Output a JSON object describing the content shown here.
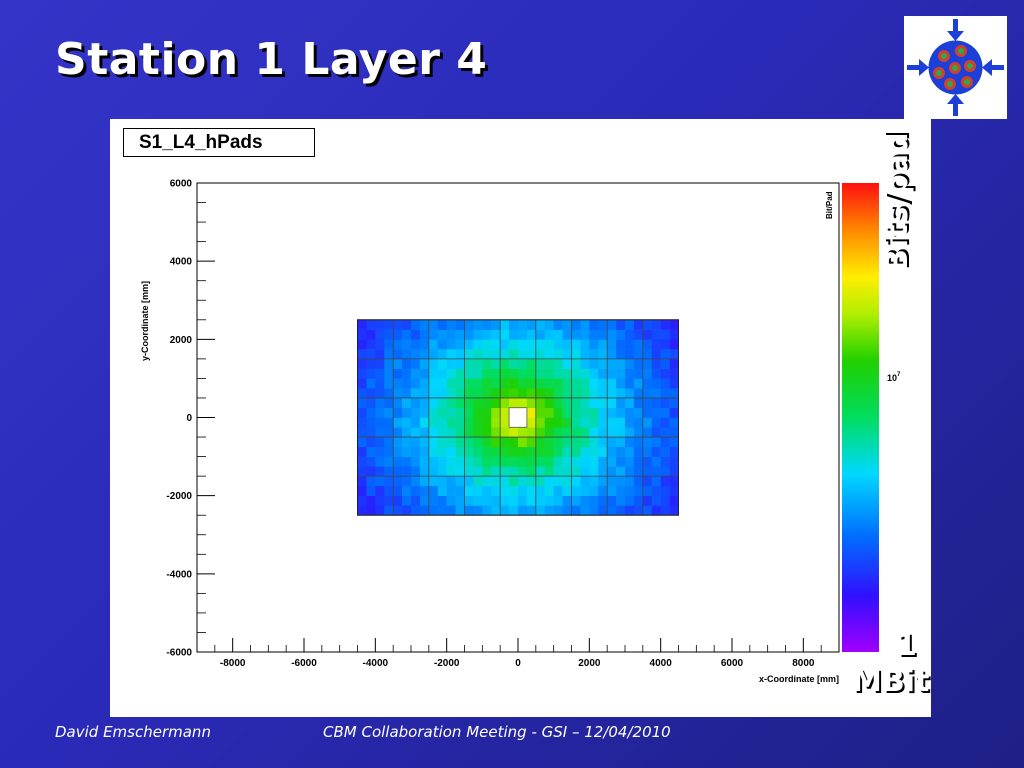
{
  "slide": {
    "title": "Station 1 Layer 4",
    "footer_author": "David Emschermann",
    "footer_event": "CBM Collaboration Meeting - GSI – 12/04/2010",
    "side_label_top": "Bits/pad",
    "side_label_bottom_number": "1",
    "side_label_bottom_unit": "MBit",
    "logo_icon": "cbm-detector-logo-icon"
  },
  "chart_data": {
    "type": "heatmap",
    "title": "S1_L4_hPads",
    "xlabel": "x-Coordinate [mm]",
    "ylabel": "y-Coordinate [mm]",
    "zlabel": "Bit/Pad",
    "xlim": [
      -9000,
      9000
    ],
    "ylim": [
      -6000,
      6000
    ],
    "x_ticks": [
      -8000,
      -6000,
      -4000,
      -2000,
      0,
      2000,
      4000,
      6000,
      8000
    ],
    "y_ticks": [
      6000,
      4000,
      2000,
      0,
      -2000,
      -4000,
      -6000
    ],
    "z_tick_label": "10",
    "z_tick_exponent": "7",
    "z_tick_value": 10000000,
    "z_scale": "log",
    "colormap": "rainbow",
    "colors": {
      "low": "#8a00ff",
      "mid": "#00cc00",
      "high": "#ff1010"
    },
    "detector_extent": {
      "x": [
        -4500,
        4500
      ],
      "y": [
        -2500,
        2500
      ]
    },
    "inner_hole": {
      "x": [
        -250,
        250
      ],
      "y": [
        -250,
        250
      ]
    },
    "grid": false,
    "legend": "colorbar-right",
    "profile": "rate falls off with distance from beam hole at (0,0)"
  }
}
